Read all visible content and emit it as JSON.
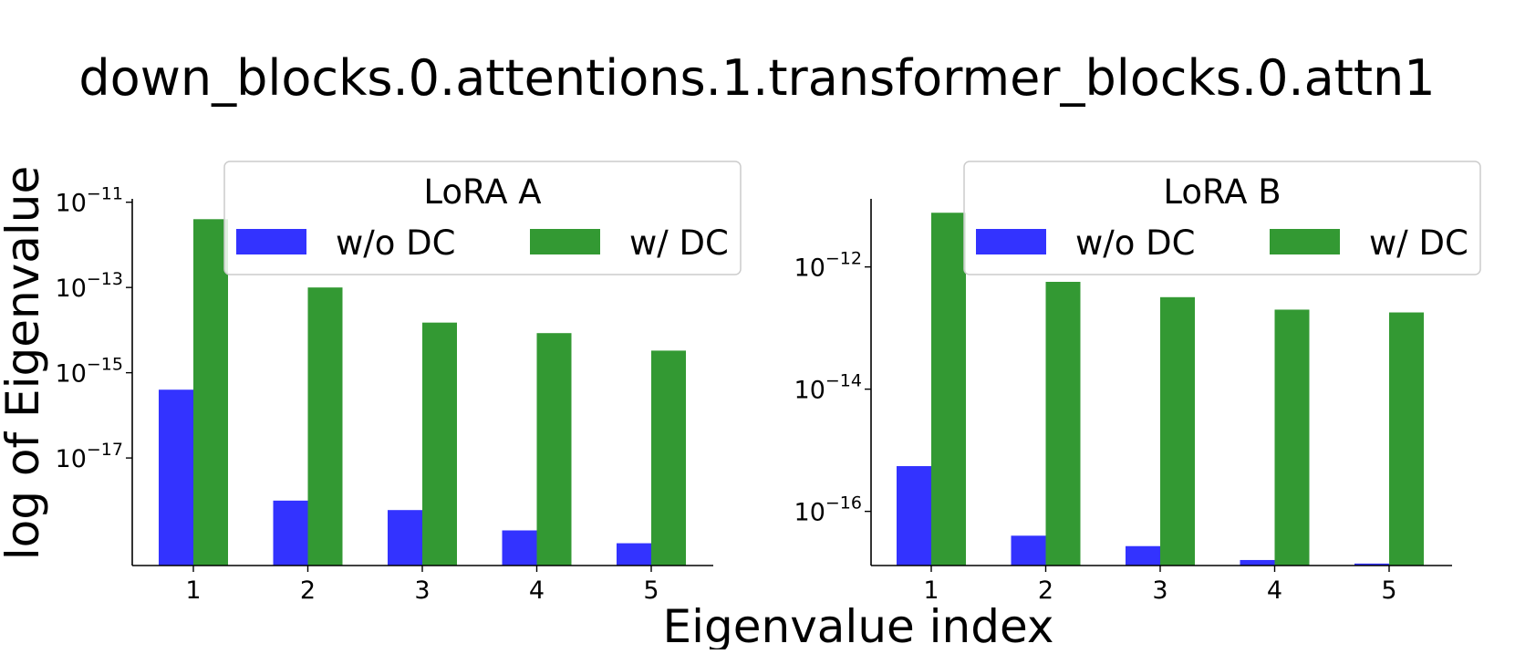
{
  "figure": {
    "title": "down_blocks.0.attentions.1.transformer_blocks.0.attn1",
    "ylabel": "log of Eigenvalue",
    "xlabel": "Eigenvalue index"
  },
  "colors": {
    "without_dc": "#3333ff",
    "with_dc": "#339933",
    "axis": "#000000"
  },
  "chart_data": [
    {
      "type": "bar",
      "scale": "log",
      "legend_title": "LoRA A",
      "legend_position": "top-right",
      "categories": [
        "1",
        "2",
        "3",
        "4",
        "5"
      ],
      "series": [
        {
          "name": "w/o DC",
          "values": [
            4e-16,
            1e-18,
            6e-19,
            2e-19,
            1e-19
          ]
        },
        {
          "name": "w/ DC",
          "values": [
            4e-12,
            1e-13,
            1.5e-14,
            8.5e-15,
            3.3e-15
          ]
        }
      ],
      "ylim": [
        3e-20,
        1.2e-11
      ],
      "yticks": [
        {
          "value": 1e-11,
          "base": "10",
          "exp": "−11"
        },
        {
          "value": 1e-13,
          "base": "10",
          "exp": "−13"
        },
        {
          "value": 1e-15,
          "base": "10",
          "exp": "−15"
        },
        {
          "value": 1e-17,
          "base": "10",
          "exp": "−17"
        }
      ]
    },
    {
      "type": "bar",
      "scale": "log",
      "legend_title": "LoRA B",
      "legend_position": "top-right",
      "categories": [
        "1",
        "2",
        "3",
        "4",
        "5"
      ],
      "series": [
        {
          "name": "w/o DC",
          "values": [
            5.5e-16,
            4e-17,
            2.7e-17,
            1.6e-17,
            1.4e-17
          ]
        },
        {
          "name": "w/ DC",
          "values": [
            7.7e-12,
            5.7e-13,
            3.2e-13,
            2e-13,
            1.8e-13
          ]
        }
      ],
      "ylim": [
        1.3e-17,
        1.3e-11
      ],
      "yticks": [
        {
          "value": 1e-12,
          "base": "10",
          "exp": "−12"
        },
        {
          "value": 1e-14,
          "base": "10",
          "exp": "−14"
        },
        {
          "value": 1e-16,
          "base": "10",
          "exp": "−16"
        }
      ]
    }
  ]
}
